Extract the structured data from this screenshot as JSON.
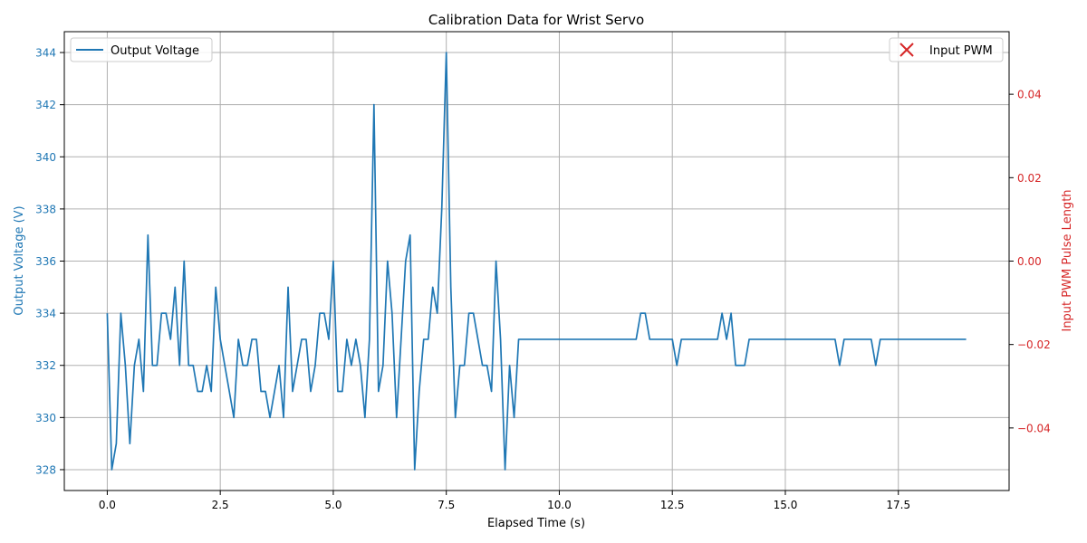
{
  "chart_data": {
    "type": "line",
    "title": "Calibration Data for Wrist Servo",
    "xlabel": "Elapsed Time (s)",
    "ylabel": "Output Voltage (V)",
    "y2label": "Input PWM Pulse Length",
    "xlim": [
      -0.95,
      19.95
    ],
    "ylim": [
      327.2,
      344.8
    ],
    "y2lim": [
      -0.055,
      0.055
    ],
    "xticks": [
      0.0,
      2.5,
      5.0,
      7.5,
      10.0,
      12.5,
      15.0,
      17.5
    ],
    "xtick_labels": [
      "0.0",
      "2.5",
      "5.0",
      "7.5",
      "10.0",
      "12.5",
      "15.0",
      "17.5"
    ],
    "yticks": [
      328,
      330,
      332,
      334,
      336,
      338,
      340,
      342,
      344
    ],
    "ytick_labels": [
      "328",
      "330",
      "332",
      "334",
      "336",
      "338",
      "340",
      "342",
      "344"
    ],
    "y2ticks": [
      -0.04,
      -0.02,
      0.0,
      0.02,
      0.04
    ],
    "y2tick_labels": [
      "−0.04",
      "−0.02",
      "0.00",
      "0.02",
      "0.04"
    ],
    "grid": true,
    "legend_left": "top-left",
    "legend_right": "top-right",
    "colors": {
      "voltage": "#1f77b4",
      "pwm": "#d62728",
      "grid": "#b0b0b0"
    },
    "series": [
      {
        "name": "Output Voltage",
        "axis": "left",
        "x": [
          0,
          0.1,
          0.2,
          0.3,
          0.4,
          0.5,
          0.6,
          0.7,
          0.8,
          0.9,
          1.0,
          1.1,
          1.2,
          1.3,
          1.4,
          1.5,
          1.6,
          1.7,
          1.8,
          1.9,
          2.0,
          2.1,
          2.2,
          2.3,
          2.4,
          2.5,
          2.6,
          2.7,
          2.8,
          2.9,
          3.0,
          3.1,
          3.2,
          3.3,
          3.4,
          3.5,
          3.6,
          3.7,
          3.8,
          3.9,
          4.0,
          4.1,
          4.2,
          4.3,
          4.4,
          4.5,
          4.6,
          4.7,
          4.8,
          4.9,
          5.0,
          5.1,
          5.2,
          5.3,
          5.4,
          5.5,
          5.6,
          5.7,
          5.8,
          5.9,
          6.0,
          6.1,
          6.2,
          6.3,
          6.4,
          6.5,
          6.6,
          6.7,
          6.8,
          6.9,
          7.0,
          7.1,
          7.2,
          7.3,
          7.4,
          7.5,
          7.6,
          7.7,
          7.8,
          7.9,
          8.0,
          8.1,
          8.2,
          8.3,
          8.4,
          8.5,
          8.6,
          8.7,
          8.8,
          8.9,
          9.0,
          9.1,
          11.7,
          11.8,
          11.9,
          12.0,
          12.5,
          12.6,
          12.7,
          13.5,
          13.6,
          13.7,
          13.8,
          13.9,
          14.0,
          14.1,
          14.2,
          16.1,
          16.2,
          16.3,
          16.9,
          17.0,
          17.1,
          19.0
        ],
        "values": [
          334,
          328,
          329,
          334,
          332,
          329,
          332,
          333,
          331,
          337,
          332,
          332,
          334,
          334,
          333,
          335,
          332,
          336,
          332,
          332,
          331,
          331,
          332,
          331,
          335,
          333,
          332,
          331,
          330,
          333,
          332,
          332,
          333,
          333,
          331,
          331,
          330,
          331,
          332,
          330,
          335,
          331,
          332,
          333,
          333,
          331,
          332,
          334,
          334,
          333,
          336,
          331,
          331,
          333,
          332,
          333,
          332,
          330,
          333,
          342,
          331,
          332,
          336,
          334,
          330,
          333,
          336,
          337,
          328,
          331,
          333,
          333,
          335,
          334,
          338,
          344,
          335,
          330,
          332,
          332,
          334,
          334,
          333,
          332,
          332,
          331,
          336,
          333,
          328,
          332,
          330,
          333,
          333,
          334,
          334,
          333,
          333,
          332,
          333,
          333,
          334,
          333,
          334,
          332,
          332,
          332,
          333,
          333,
          332,
          333,
          333,
          332,
          333,
          333
        ]
      },
      {
        "name": "Input PWM",
        "axis": "right",
        "marker": "x",
        "x": [],
        "values": []
      }
    ]
  }
}
